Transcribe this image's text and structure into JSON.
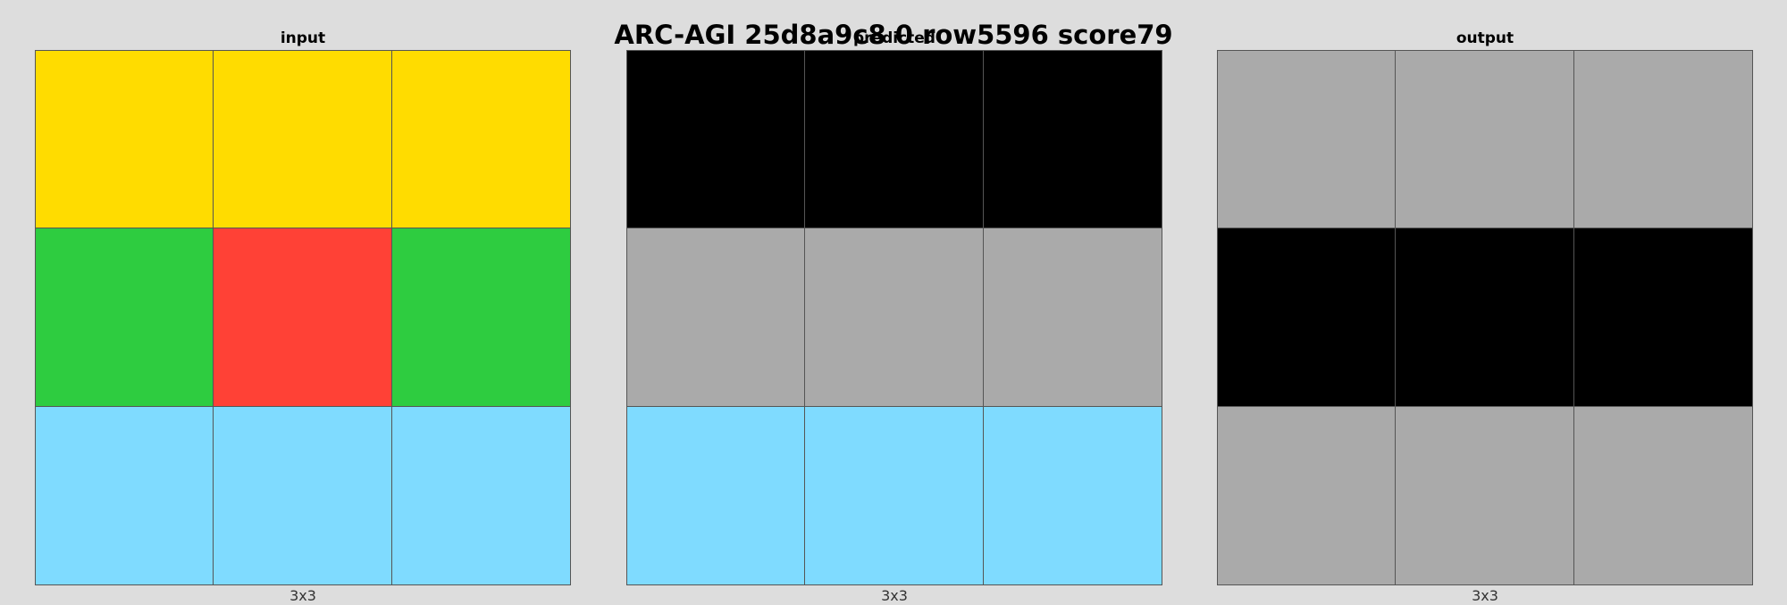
{
  "title": "ARC-AGI 25d8a9c8 0 row5596 score79",
  "palette": {
    "0": "#000000",
    "2": "#ff4136",
    "3": "#2ecc40",
    "4": "#ffdc00",
    "5": "#aaaaaa",
    "8": "#7fdbff"
  },
  "panels": [
    {
      "title": "input",
      "size_label": "3x3",
      "grid": [
        [
          4,
          4,
          4
        ],
        [
          3,
          2,
          3
        ],
        [
          8,
          8,
          8
        ]
      ]
    },
    {
      "title": "predicted",
      "size_label": "3x3",
      "grid": [
        [
          0,
          0,
          0
        ],
        [
          5,
          5,
          5
        ],
        [
          8,
          8,
          8
        ]
      ]
    },
    {
      "title": "output",
      "size_label": "3x3",
      "grid": [
        [
          5,
          5,
          5
        ],
        [
          0,
          0,
          0
        ],
        [
          5,
          5,
          5
        ]
      ]
    }
  ]
}
